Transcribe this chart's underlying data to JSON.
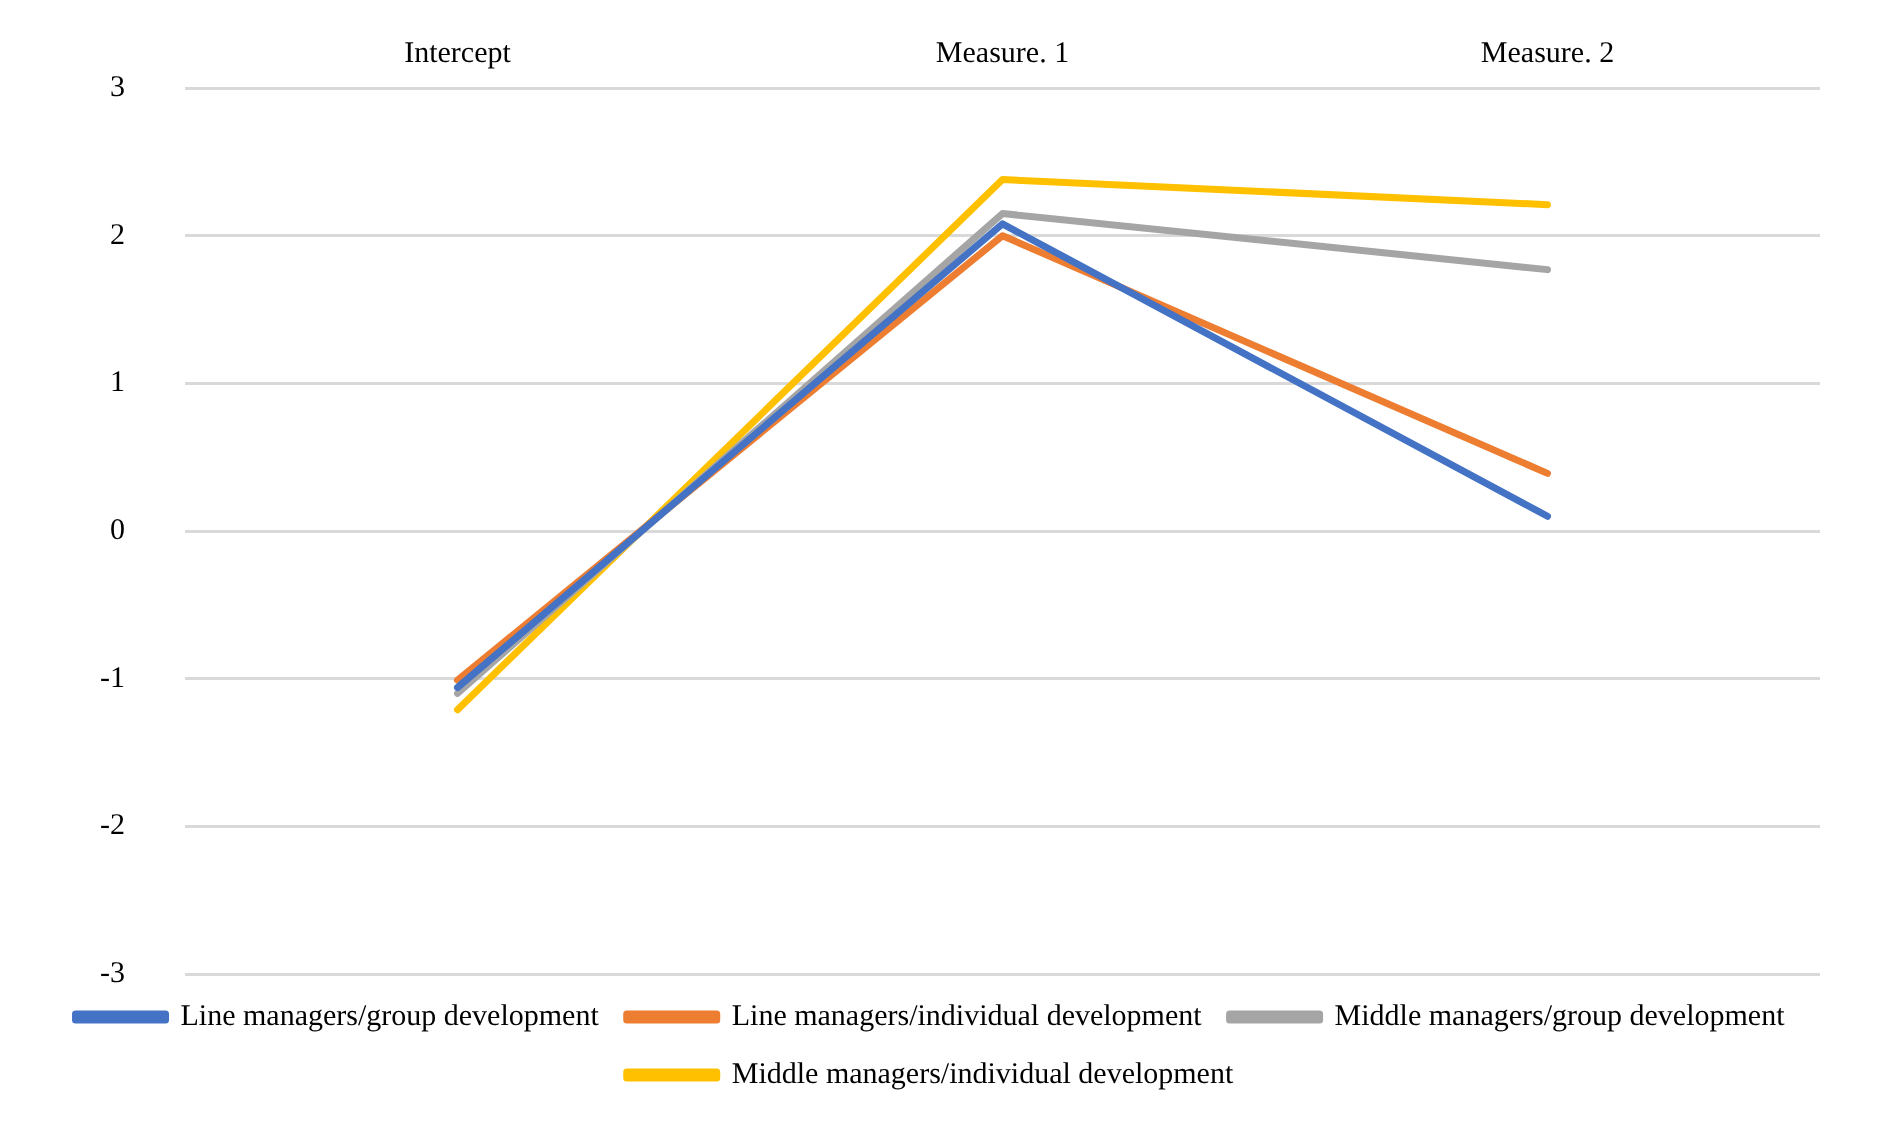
{
  "chart_data": {
    "type": "line",
    "categories": [
      "Intercept",
      "Measure. 1",
      "Measure. 2"
    ],
    "series": [
      {
        "name": "Line managers/group development",
        "color": "#4472c4",
        "values": [
          -1.06,
          2.08,
          0.1
        ]
      },
      {
        "name": "Line managers/individual development",
        "color": "#ed7d31",
        "values": [
          -1.01,
          2.0,
          0.39
        ]
      },
      {
        "name": "Middle managers/group development",
        "color": "#a5a5a5",
        "values": [
          -1.1,
          2.15,
          1.77
        ]
      },
      {
        "name": "Middle managers/individual development",
        "color": "#ffc000",
        "values": [
          -1.21,
          2.38,
          2.21
        ]
      }
    ],
    "ylim": [
      -3,
      3
    ],
    "yticks": [
      -3,
      -2,
      -1,
      0,
      1,
      2,
      3
    ],
    "grid": "y",
    "legend": "bottom",
    "marker": "none",
    "line_style": "solid"
  }
}
